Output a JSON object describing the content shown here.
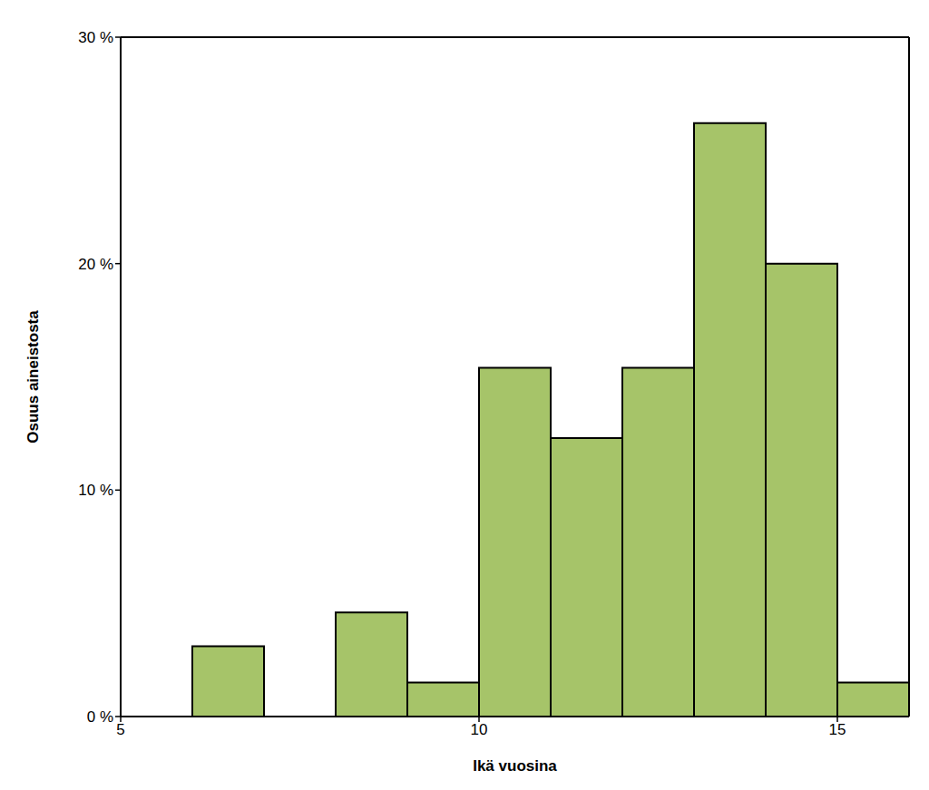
{
  "chart_data": {
    "type": "histogram",
    "xlabel": "Ikä vuosina",
    "ylabel": "Osuus aineistosta",
    "bins": [
      5,
      6,
      7,
      8,
      9,
      10,
      11,
      12,
      13,
      14,
      15,
      16
    ],
    "values": [
      0,
      3.1,
      0,
      4.6,
      1.5,
      15.4,
      12.3,
      15.4,
      26.2,
      20,
      1.5
    ],
    "color": "#a6c469",
    "xlim": [
      5,
      16
    ],
    "xticks": [
      5,
      10,
      15
    ],
    "ylim": [
      0,
      30
    ],
    "yticks": [
      {
        "value": 0,
        "label": "0 %"
      },
      {
        "value": 10,
        "label": "10 %"
      },
      {
        "value": 20,
        "label": "20 %"
      },
      {
        "value": 30,
        "label": "30 %"
      }
    ]
  }
}
